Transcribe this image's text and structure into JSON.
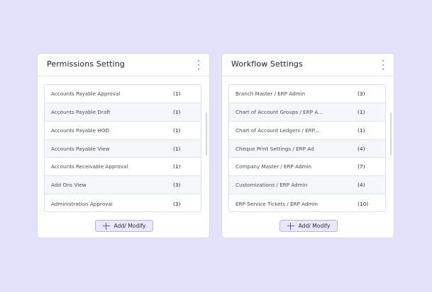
{
  "permissions": {
    "title": "Permissions Setting",
    "items": [
      {
        "label": "Accounts Payable Approval",
        "count": "(1)"
      },
      {
        "label": "Accounts Payable Draft",
        "count": "(1)"
      },
      {
        "label": "Accounts Payable HOD",
        "count": "(1)"
      },
      {
        "label": "Accounts Payable View",
        "count": "(1)"
      },
      {
        "label": "Accounts Receivable Approval",
        "count": "(1)"
      },
      {
        "label": "Add Ons View",
        "count": "(3)"
      },
      {
        "label": "Administration Approval",
        "count": "(3)"
      }
    ],
    "button_label": "Add/ Modify"
  },
  "workflow": {
    "title": "Workflow Settings",
    "items": [
      {
        "label": "Branch Master / ERP Admin",
        "count": "(3)"
      },
      {
        "label": "Chart of Account Groups / ERP A...",
        "count": "(1)"
      },
      {
        "label": "Chart of Account Ledgers / ERP...",
        "count": "(1)"
      },
      {
        "label": "Cheque Print Settings / ERP Ad",
        "count": "(4)"
      },
      {
        "label": "Company Master / ERP Admin",
        "count": "(7)"
      },
      {
        "label": "Customizations / ERP Admin",
        "count": "(4)"
      },
      {
        "label": "ERP Service Tickets / ERP Admin",
        "count": "(10)"
      }
    ],
    "button_label": "Add/ Modify"
  },
  "colors": {
    "background": "#e4e1fb",
    "accent": "#5a4fd6",
    "button_bg": "#eae8fc"
  }
}
